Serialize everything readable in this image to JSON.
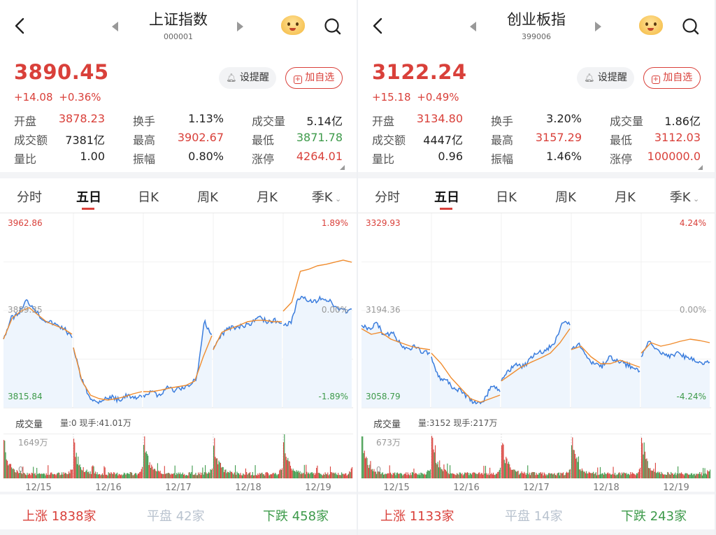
{
  "panels": [
    {
      "name": "上证指数",
      "code": "000001",
      "price": "3890.45",
      "change": "+14.08",
      "change_pct": "+0.36%",
      "alert_label": "设提醒",
      "add_label": "加自选",
      "stats": [
        {
          "label": "开盘",
          "value": "3878.23",
          "color": "red"
        },
        {
          "label": "换手",
          "value": "1.13%",
          "color": "dark"
        },
        {
          "label": "成交量",
          "value": "5.14亿",
          "color": "dark"
        },
        {
          "label": "成交额",
          "value": "7381亿",
          "color": "dark"
        },
        {
          "label": "最高",
          "value": "3902.67",
          "color": "red"
        },
        {
          "label": "最低",
          "value": "3871.78",
          "color": "green"
        },
        {
          "label": "量比",
          "value": "1.00",
          "color": "dark"
        },
        {
          "label": "振幅",
          "value": "0.80%",
          "color": "dark"
        },
        {
          "label": "涨停",
          "value": "4264.01",
          "color": "red"
        }
      ],
      "tabs": [
        "分时",
        "五日",
        "日K",
        "周K",
        "月K",
        "季K"
      ],
      "active_tab": "五日",
      "chart": {
        "type": "line",
        "y_max": "3962.86",
        "y_mid": "3889.35",
        "y_min": "3815.84",
        "pct_max": "1.89%",
        "pct_mid": "0.00%",
        "pct_min": "-1.89%",
        "ylim": [
          3815.84,
          3962.86
        ],
        "dates": [
          "12/15",
          "12/16",
          "12/17",
          "12/18",
          "12/19"
        ],
        "price": [
          [
            3867.7,
            3883.5,
            3887.2,
            3896.8,
            3891.5,
            3883.5,
            3880.9,
            3878.2,
            3875.6,
            3868.7
          ],
          [
            3861.3,
            3838.6,
            3825.3,
            3820.0,
            3822.7,
            3823.7,
            3821.6,
            3825.3,
            3822.7,
            3823.7
          ],
          [
            3825.3,
            3828,
            3825.3,
            3830.6,
            3828.9,
            3830.6,
            3832.2,
            3838.6,
            3880.9,
            3871.4
          ],
          [
            3859.7,
            3870.3,
            3875.6,
            3876.6,
            3878.2,
            3879.8,
            3885.1,
            3880.9,
            3882,
            3879.8
          ],
          [
            3878.2,
            3879.8,
            3899.4,
            3897.8,
            3895.7,
            3899.4,
            3896.8,
            3891.5,
            3888.8,
            3890.45
          ]
        ],
        "average": [
          [
            3867.7,
            3883.5,
            3888.8,
            3891.5,
            3886.2,
            3880.9,
            3878.2,
            3875.6,
            3871.4
          ],
          [
            3861.3,
            3835.9,
            3825.3,
            3822.7,
            3821.6,
            3822.7,
            3824.2,
            3826.4,
            3828
          ],
          [
            3828,
            3828,
            3829.1,
            3830.6,
            3831.7,
            3832.8,
            3836,
            3854.5,
            3870.3
          ],
          [
            3859.7,
            3872.9,
            3875.6,
            3878.2,
            3880.9,
            3881.9,
            3881.9,
            3880.9,
            3880.9
          ],
          [
            3888.8,
            3895.7,
            3919,
            3920.6,
            3923.2,
            3924.3,
            3925.9,
            3927.5,
            3925.9
          ]
        ],
        "colors": {
          "price": "#3b7ddd",
          "average": "#f08c2e",
          "up": "#d9403a",
          "down": "#3d9a4a"
        }
      },
      "volume": {
        "label": "成交量",
        "info": "量:0 现手:41.01万",
        "max": "1649万",
        "min": "0"
      },
      "breadth": {
        "up_label": "上涨",
        "up": "1838家",
        "flat_label": "平盘",
        "flat": "42家",
        "down_label": "下跌",
        "down": "458家"
      }
    },
    {
      "name": "创业板指",
      "code": "399006",
      "price": "3122.24",
      "change": "+15.18",
      "change_pct": "+0.49%",
      "alert_label": "设提醒",
      "add_label": "加自选",
      "stats": [
        {
          "label": "开盘",
          "value": "3134.80",
          "color": "red"
        },
        {
          "label": "换手",
          "value": "3.20%",
          "color": "dark"
        },
        {
          "label": "成交量",
          "value": "1.86亿",
          "color": "dark"
        },
        {
          "label": "成交额",
          "value": "4447亿",
          "color": "dark"
        },
        {
          "label": "最高",
          "value": "3157.29",
          "color": "red"
        },
        {
          "label": "最低",
          "value": "3112.03",
          "color": "red"
        },
        {
          "label": "量比",
          "value": "0.96",
          "color": "dark"
        },
        {
          "label": "振幅",
          "value": "1.46%",
          "color": "dark"
        },
        {
          "label": "涨停",
          "value": "100000.0",
          "color": "red"
        }
      ],
      "tabs": [
        "分时",
        "五日",
        "日K",
        "周K",
        "月K",
        "季K"
      ],
      "active_tab": "五日",
      "chart": {
        "type": "line",
        "y_max": "3329.93",
        "y_mid": "3194.36",
        "y_min": "3058.79",
        "pct_max": "4.24%",
        "pct_mid": "0.00%",
        "pct_min": "-4.24%",
        "ylim": [
          3058.79,
          3329.93
        ],
        "dates": [
          "12/15",
          "12/16",
          "12/17",
          "12/18",
          "12/19"
        ],
        "price": [
          [
            3173.9,
            3169,
            3176.9,
            3159.2,
            3164,
            3149.5,
            3139.7,
            3144.6,
            3136.8,
            3134.9
          ],
          [
            3130,
            3101,
            3096,
            3086,
            3081,
            3071,
            3063,
            3071,
            3091,
            3081
          ],
          [
            3096,
            3111,
            3120,
            3116,
            3130,
            3135,
            3140,
            3149,
            3179,
            3174
          ],
          [
            3140,
            3150,
            3130,
            3120,
            3116,
            3130,
            3125,
            3120,
            3116,
            3110
          ],
          [
            3130,
            3150,
            3140,
            3135,
            3130,
            3135,
            3128,
            3125,
            3120,
            3122.24
          ]
        ],
        "average": [
          [
            3169,
            3161.2,
            3164,
            3154.4,
            3149.5,
            3144.6,
            3141.7,
            3139.7
          ],
          [
            3134.9,
            3120.2,
            3100.7,
            3086,
            3071.4,
            3066.5,
            3071.4,
            3076.3
          ],
          [
            3096,
            3105.6,
            3115.3,
            3122,
            3128,
            3134.9,
            3149.5,
            3169
          ],
          [
            3139.7,
            3144.6,
            3130,
            3120.2,
            3120.2,
            3125,
            3120.2,
            3115.3
          ],
          [
            3134.9,
            3149.5,
            3144.6,
            3147.5,
            3151.4,
            3154.4,
            3152.4,
            3149.5
          ]
        ],
        "colors": {
          "price": "#3b7ddd",
          "average": "#f08c2e",
          "up": "#d9403a",
          "down": "#3d9a4a"
        }
      },
      "volume": {
        "label": "成交量",
        "info": "量:3152 现手:217万",
        "max": "673万",
        "min": "0"
      },
      "breadth": {
        "up_label": "上涨",
        "up": "1133家",
        "flat_label": "平盘",
        "flat": "14家",
        "down_label": "下跌",
        "down": "243家"
      }
    }
  ]
}
